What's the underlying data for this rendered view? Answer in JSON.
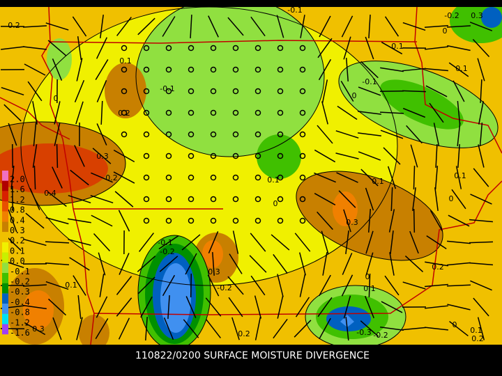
{
  "map": {
    "title": "110822/0200 SURFACE MOISTURE DIVERGENCE",
    "legend": [
      {
        "label": "2.0",
        "color": "#f070c0"
      },
      {
        "label": "1.6",
        "color": "#b00000"
      },
      {
        "label": "1.2",
        "color": "#d82000"
      },
      {
        "label": "0.8",
        "color": "#e85000"
      },
      {
        "label": "0.4",
        "color": "#f08000"
      },
      {
        "label": "0.3",
        "color": "#c88000"
      },
      {
        "label": "0.2",
        "color": "#f0c000"
      },
      {
        "label": "0.1",
        "color": "#f0f000"
      },
      {
        "label": "0.0",
        "color": "#c8f000"
      },
      {
        "label": "-0.1",
        "color": "#90e040"
      },
      {
        "label": "-0.2",
        "color": "#40c000"
      },
      {
        "label": "-0.3",
        "color": "#009000"
      },
      {
        "label": "-0.4",
        "color": "#0060c0"
      },
      {
        "label": "-0.8",
        "color": "#4090f0"
      },
      {
        "label": "-1.2",
        "color": "#00e0f0"
      },
      {
        "label": "-1.6",
        "color": "#a040f0"
      }
    ],
    "contour_labels": [
      "0.2",
      "0.1",
      "-0.1",
      "0",
      "0.2",
      "0.3",
      "0.2",
      "0.4",
      "0.1",
      "0",
      "-0.1",
      "-0.2",
      "0.3",
      "-0.2",
      "0.1",
      "0.3",
      "0.2",
      "-0.3",
      "-0.2",
      "0.1",
      "0",
      "0.3",
      "0.1",
      "0",
      "0.1",
      "0.2",
      "-0.1",
      "0",
      "0.1",
      "0.1",
      "0",
      "-0.1",
      "-0.2",
      "0.3",
      "0",
      "0.1",
      "0.2"
    ]
  }
}
